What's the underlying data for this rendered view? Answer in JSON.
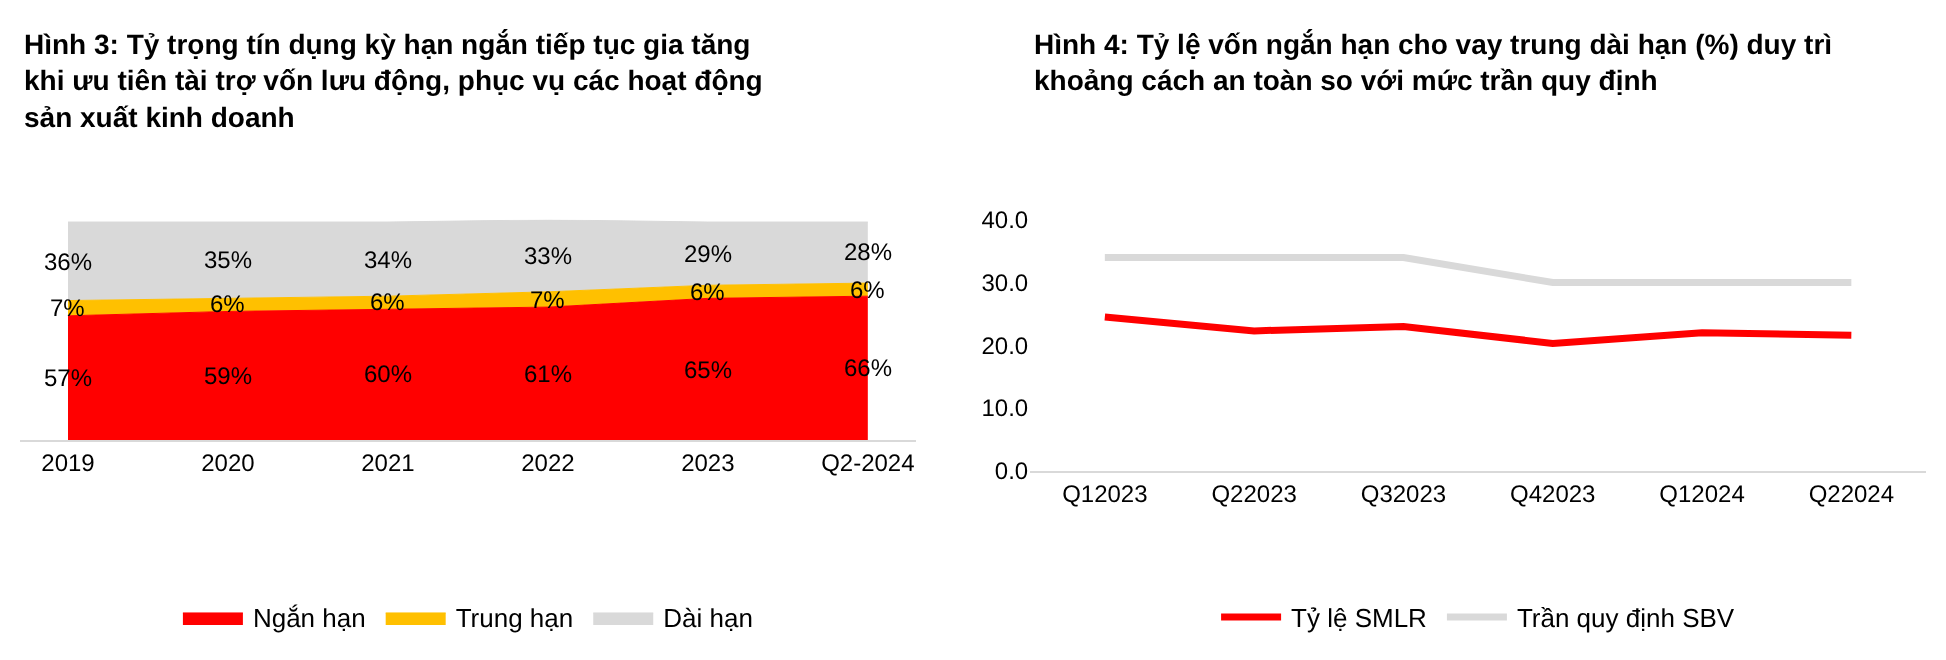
{
  "chart_data": [
    {
      "type": "area",
      "title": "Hình 3: Tỷ trọng tín dụng kỳ hạn ngắn tiếp tục gia tăng khi ưu tiên tài trợ vốn lưu động, phục vụ các hoạt động sản xuất kinh doanh",
      "categories": [
        "2019",
        "2020",
        "2021",
        "2022",
        "2023",
        "Q2-2024"
      ],
      "stacked": true,
      "legend": "bottom",
      "series": [
        {
          "name": "Ngắn hạn",
          "color": "#ff0000",
          "values": [
            57,
            59,
            60,
            61,
            65,
            66
          ],
          "value_labels": [
            "57%",
            "59%",
            "60%",
            "61%",
            "65%",
            "66%"
          ]
        },
        {
          "name": "Trung hạn",
          "color": "#ffc000",
          "values": [
            7,
            6,
            6,
            7,
            6,
            6
          ],
          "value_labels": [
            "7%",
            "6%",
            "6%",
            "7%",
            "6%",
            "6%"
          ]
        },
        {
          "name": "Dài hạn",
          "color": "#d9d9d9",
          "values": [
            36,
            35,
            34,
            33,
            29,
            28
          ],
          "value_labels": [
            "36%",
            "35%",
            "34%",
            "33%",
            "29%",
            "28%"
          ]
        }
      ]
    },
    {
      "type": "line",
      "title": "Hình 4: Tỷ lệ vốn ngắn hạn cho vay trung dài hạn (%) duy trì khoảng cách an toàn so với mức trần quy định",
      "categories": [
        "Q12023",
        "Q22023",
        "Q32023",
        "Q42023",
        "Q12024",
        "Q22024"
      ],
      "ylim": [
        0,
        40
      ],
      "yticks": [
        {
          "value": 0,
          "label": "0.0"
        },
        {
          "value": 10,
          "label": "10.0"
        },
        {
          "value": 20,
          "label": "20.0"
        },
        {
          "value": 30,
          "label": "30.0"
        },
        {
          "value": 40,
          "label": "40.0"
        }
      ],
      "legend": "bottom",
      "marker": "none",
      "series": [
        {
          "name": "Tỷ lệ SMLR",
          "color": "#ff0000",
          "values": [
            24.5,
            22.3,
            23.0,
            20.3,
            22.0,
            21.6
          ]
        },
        {
          "name": "Trần quy định SBV",
          "color": "#d9d9d9",
          "values": [
            34,
            34,
            34,
            30,
            30,
            30
          ]
        }
      ]
    }
  ]
}
